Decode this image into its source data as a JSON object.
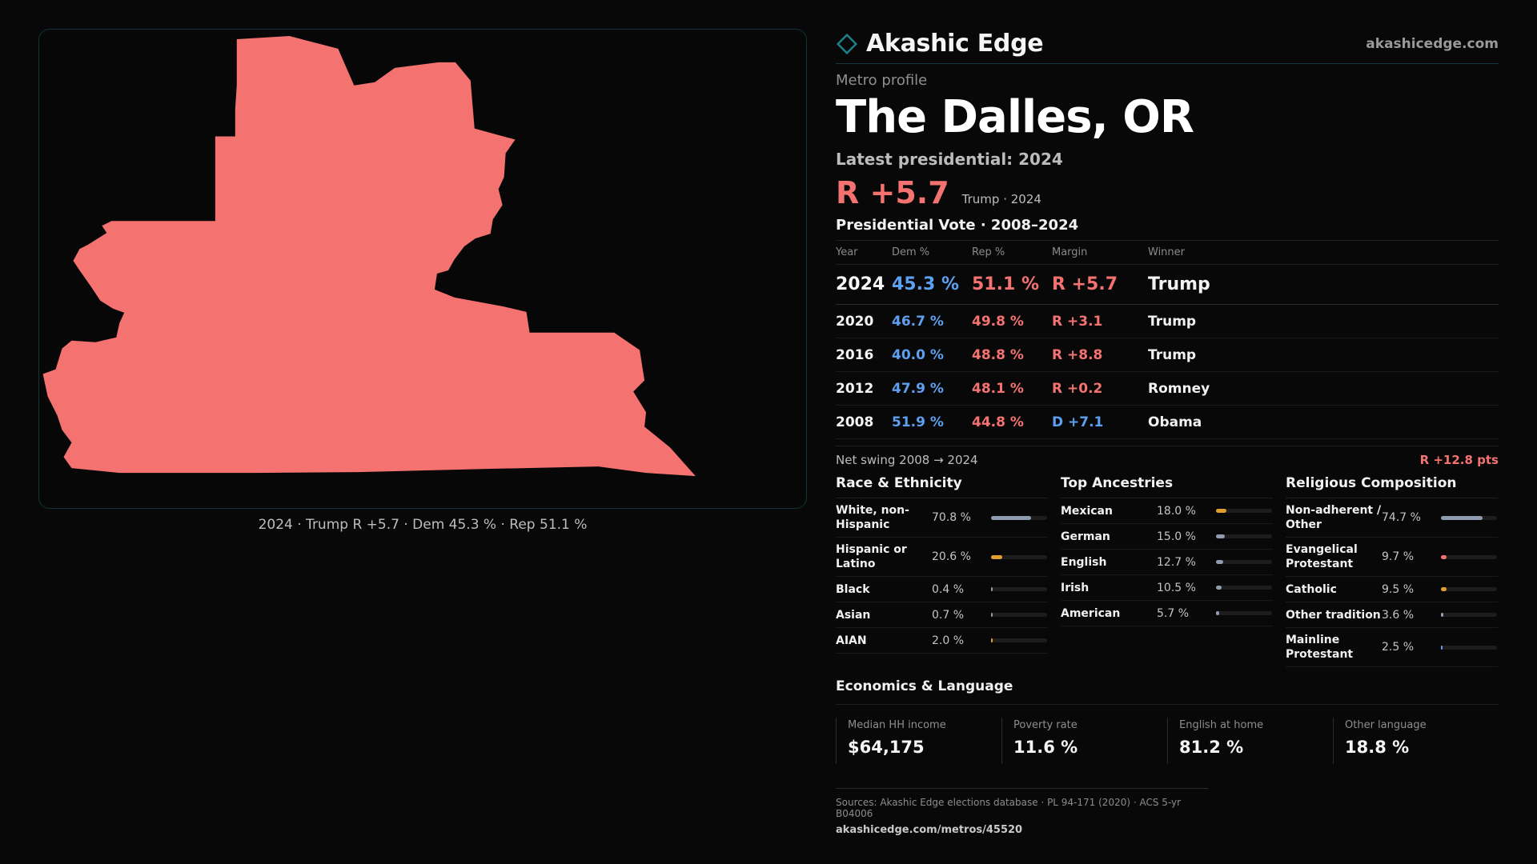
{
  "brand": {
    "name": "Akashic Edge",
    "url": "akashicedge.com",
    "accent": "#1e7d86"
  },
  "map": {
    "fill_color": "#f47371",
    "caption": "2024 · Trump R +5.7 · Dem 45.3 % · Rep 51.1 %"
  },
  "profile": {
    "eyebrow": "Metro profile",
    "title": "The Dalles, OR",
    "latest_label": "Latest presidential: 2024",
    "headline_margin": "R +5.7",
    "headline_sub": "Trump · 2024"
  },
  "vote_table": {
    "title": "Presidential Vote · 2008–2024",
    "headers": [
      "Year",
      "Dem %",
      "Rep %",
      "Margin",
      "Winner"
    ],
    "rows": [
      {
        "year": "2024",
        "dem": "45.3 %",
        "rep": "51.1 %",
        "margin": "R +5.7",
        "party": "R",
        "winner": "Trump"
      },
      {
        "year": "2020",
        "dem": "46.7 %",
        "rep": "49.8 %",
        "margin": "R +3.1",
        "party": "R",
        "winner": "Trump"
      },
      {
        "year": "2016",
        "dem": "40.0 %",
        "rep": "48.8 %",
        "margin": "R +8.8",
        "party": "R",
        "winner": "Trump"
      },
      {
        "year": "2012",
        "dem": "47.9 %",
        "rep": "48.1 %",
        "margin": "R +0.2",
        "party": "R",
        "winner": "Romney"
      },
      {
        "year": "2008",
        "dem": "51.9 %",
        "rep": "44.8 %",
        "margin": "D +7.1",
        "party": "D",
        "winner": "Obama"
      }
    ],
    "swing_label": "Net swing 2008 → 2024",
    "swing_value": "R +12.8 pts"
  },
  "race": {
    "title": "Race & Ethnicity",
    "items": [
      {
        "name": "White, non-Hispanic",
        "pct": "70.8 %",
        "value": 70.8,
        "color": "#8f9bb0"
      },
      {
        "name": "Hispanic or Latino",
        "pct": "20.6 %",
        "value": 20.6,
        "color": "#e0a030"
      },
      {
        "name": "Black",
        "pct": "0.4 %",
        "value": 0.4,
        "color": "#8f9bb0"
      },
      {
        "name": "Asian",
        "pct": "0.7 %",
        "value": 0.7,
        "color": "#8f9bb0"
      },
      {
        "name": "AIAN",
        "pct": "2.0 %",
        "value": 2.0,
        "color": "#e0a030"
      }
    ]
  },
  "ancestry": {
    "title": "Top Ancestries",
    "items": [
      {
        "name": "Mexican",
        "pct": "18.0 %",
        "value": 18.0,
        "color": "#e0a030"
      },
      {
        "name": "German",
        "pct": "15.0 %",
        "value": 15.0,
        "color": "#8f9bb0"
      },
      {
        "name": "English",
        "pct": "12.7 %",
        "value": 12.7,
        "color": "#8f9bb0"
      },
      {
        "name": "Irish",
        "pct": "10.5 %",
        "value": 10.5,
        "color": "#8f9bb0"
      },
      {
        "name": "American",
        "pct": "5.7 %",
        "value": 5.7,
        "color": "#8f9bb0"
      }
    ]
  },
  "religion": {
    "title": "Religious Composition",
    "items": [
      {
        "name": "Non-adherent / Other",
        "pct": "74.7 %",
        "value": 74.7,
        "color": "#8f9bb0"
      },
      {
        "name": "Evangelical Protestant",
        "pct": "9.7 %",
        "value": 9.7,
        "color": "#f47371"
      },
      {
        "name": "Catholic",
        "pct": "9.5 %",
        "value": 9.5,
        "color": "#e0a030"
      },
      {
        "name": "Other tradition",
        "pct": "3.6 %",
        "value": 3.6,
        "color": "#8f9bb0"
      },
      {
        "name": "Mainline Protestant",
        "pct": "2.5 %",
        "value": 2.5,
        "color": "#5ea0f0"
      }
    ]
  },
  "economics": {
    "title": "Economics & Language",
    "cells": [
      {
        "label": "Median HH income",
        "value": "$64,175"
      },
      {
        "label": "Poverty rate",
        "value": "11.6 %"
      },
      {
        "label": "English at home",
        "value": "81.2 %"
      },
      {
        "label": "Other language",
        "value": "18.8 %"
      }
    ]
  },
  "footer": {
    "sources": "Sources: Akashic Edge elections database · PL 94-171 (2020) · ACS 5-yr B04006",
    "url": "akashicedge.com/metros/45520"
  }
}
